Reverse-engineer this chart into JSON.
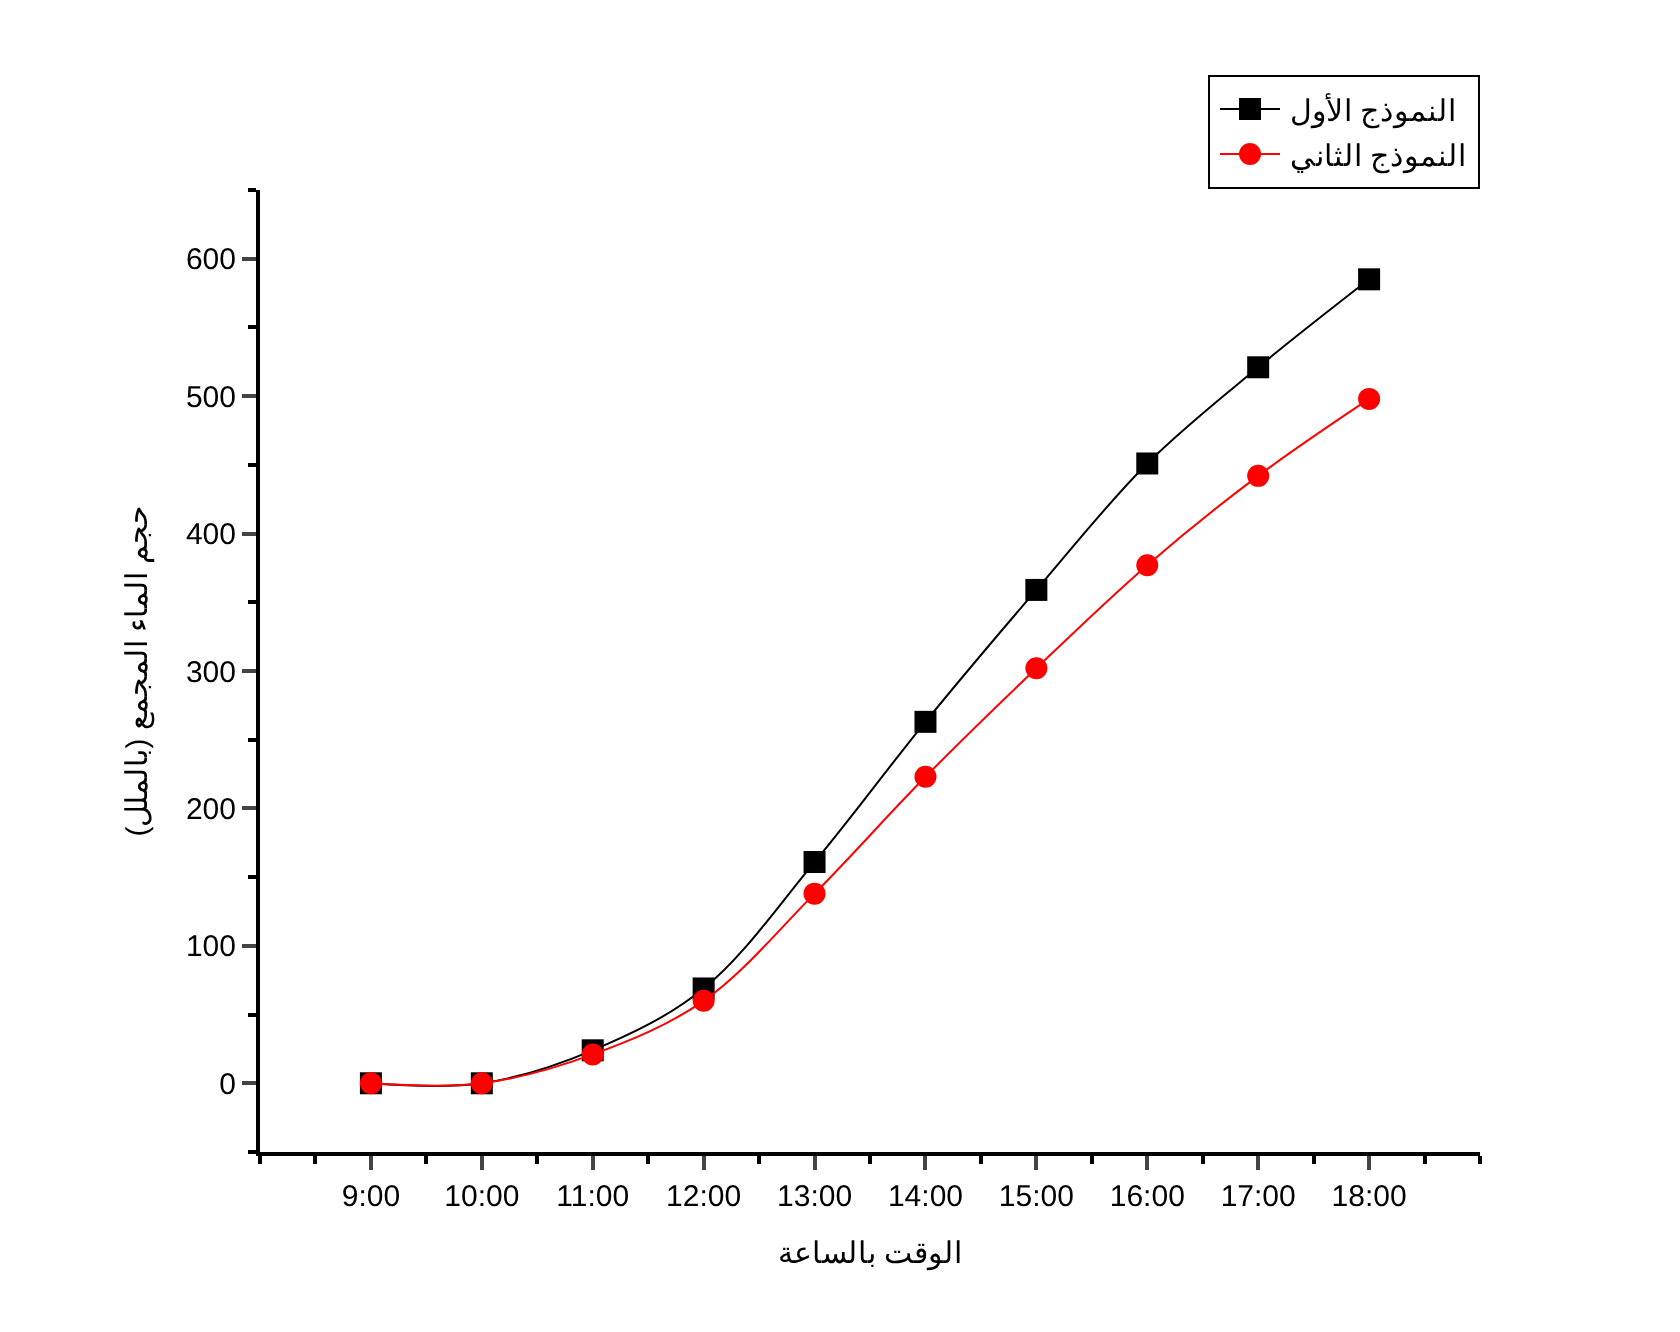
{
  "chart_data": {
    "type": "line",
    "xlabel": "الوقت بالساعة",
    "ylabel": "حجم الماء المجمع (بالملل)",
    "x": [
      9,
      10,
      11,
      12,
      13,
      14,
      15,
      16,
      17,
      18
    ],
    "series": [
      {
        "name": "النموذج الأول",
        "color": "#000000",
        "marker": "square",
        "values": [
          0,
          0,
          24,
          69,
          161,
          263,
          359,
          451,
          521,
          585
        ]
      },
      {
        "name": "النموذج الثاني",
        "color": "#ff0000",
        "marker": "circle",
        "values": [
          0,
          0,
          21,
          60,
          138,
          223,
          302,
          377,
          442,
          498
        ]
      }
    ],
    "xlim": [
      8,
      19
    ],
    "xticks": [
      {
        "value": 9,
        "label": "9:00"
      },
      {
        "value": 10,
        "label": "10:00"
      },
      {
        "value": 11,
        "label": "11:00"
      },
      {
        "value": 12,
        "label": "12:00"
      },
      {
        "value": 13,
        "label": "13:00"
      },
      {
        "value": 14,
        "label": "14:00"
      },
      {
        "value": 15,
        "label": "15:00"
      },
      {
        "value": 16,
        "label": "16:00"
      },
      {
        "value": 17,
        "label": "17:00"
      },
      {
        "value": 18,
        "label": "18:00"
      }
    ],
    "ylim": [
      -50,
      650
    ],
    "yticks": [
      0,
      100,
      200,
      300,
      400,
      500,
      600
    ],
    "legend": "top right",
    "line_style": "solid"
  }
}
